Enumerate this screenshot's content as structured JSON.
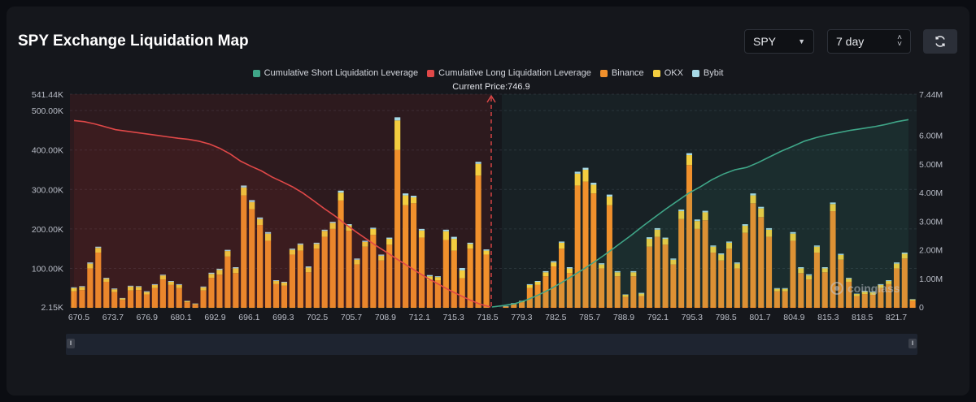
{
  "header": {
    "title": "SPY Exchange Liquidation Map",
    "symbol": "SPY",
    "period": "7 day",
    "refresh_icon": "refresh-icon"
  },
  "legend": [
    {
      "label": "Cumulative Short Liquidation Leverage",
      "color": "#3fa688"
    },
    {
      "label": "Cumulative Long Liquidation Leverage",
      "color": "#e04848"
    },
    {
      "label": "Binance",
      "color": "#f0902c"
    },
    {
      "label": "OKX",
      "color": "#f3cd3f"
    },
    {
      "label": "Bybit",
      "color": "#a6d9e6"
    }
  ],
  "watermark": "coinglass",
  "chart_data": {
    "type": "bar",
    "current_price_label": "Current Price:746.9",
    "current_price": 746.9,
    "x_tick_labels": [
      "670.5",
      "673.7",
      "676.9",
      "680.1",
      "692.9",
      "696.1",
      "699.3",
      "702.5",
      "705.7",
      "708.9",
      "712.1",
      "715.3",
      "718.5",
      "779.3",
      "782.5",
      "785.7",
      "788.9",
      "792.1",
      "795.3",
      "798.5",
      "801.7",
      "804.9",
      "815.3",
      "818.5",
      "821.7"
    ],
    "y_left": {
      "ticks": [
        "2.15K",
        "100.00K",
        "200.00K",
        "300.00K",
        "400.00K",
        "500.00K",
        "541.44K"
      ],
      "range": [
        2150,
        541440
      ]
    },
    "y_right": {
      "ticks": [
        "0",
        "1.00M",
        "2.00M",
        "3.00M",
        "4.00M",
        "5.00M",
        "6.00M",
        "7.44M"
      ],
      "range": [
        0,
        7440000
      ]
    },
    "long_side_bars": [
      [
        42000,
        8000,
        2000
      ],
      [
        45000,
        8000,
        2000
      ],
      [
        100000,
        12000,
        3000
      ],
      [
        140000,
        12000,
        3000
      ],
      [
        66000,
        8000,
        2000
      ],
      [
        40000,
        7000,
        2000
      ],
      [
        20000,
        4000,
        1000
      ],
      [
        44000,
        10000,
        2000
      ],
      [
        45000,
        8000,
        2000
      ],
      [
        34000,
        6000,
        2000
      ],
      [
        50000,
        8000,
        2000
      ],
      [
        72000,
        10000,
        2000
      ],
      [
        58000,
        8000,
        2000
      ],
      [
        50000,
        8000,
        2000
      ],
      [
        14000,
        3000,
        1000
      ],
      [
        8000,
        2000,
        1000
      ],
      [
        44000,
        8000,
        2000
      ],
      [
        76000,
        10000,
        3000
      ],
      [
        84000,
        12000,
        3000
      ],
      [
        130000,
        14000,
        3000
      ],
      [
        88000,
        12000,
        3000
      ],
      [
        285000,
        20000,
        5000
      ],
      [
        250000,
        18000,
        5000
      ],
      [
        210000,
        15000,
        4000
      ],
      [
        170000,
        18000,
        4000
      ],
      [
        60000,
        8000,
        2000
      ],
      [
        56000,
        8000,
        2000
      ],
      [
        135000,
        12000,
        3000
      ],
      [
        145000,
        15000,
        3000
      ],
      [
        90000,
        12000,
        3000
      ],
      [
        150000,
        12000,
        3000
      ],
      [
        180000,
        15000,
        3000
      ],
      [
        200000,
        15000,
        3000
      ],
      [
        272000,
        20000,
        5000
      ],
      [
        195000,
        14000,
        3000
      ],
      [
        110000,
        12000,
        3000
      ],
      [
        155000,
        12000,
        3000
      ],
      [
        185000,
        15000,
        3000
      ],
      [
        120000,
        12000,
        3000
      ],
      [
        160000,
        15000,
        3000
      ],
      [
        400000,
        75000,
        8000
      ],
      [
        260000,
        25000,
        5000
      ],
      [
        265000,
        15000,
        4000
      ],
      [
        178000,
        18000,
        4000
      ],
      [
        70000,
        10000,
        3000
      ],
      [
        70000,
        8000,
        2000
      ],
      [
        172000,
        22000,
        4000
      ],
      [
        145000,
        30000,
        5000
      ],
      [
        75000,
        20000,
        6000
      ],
      [
        150000,
        12000,
        3000
      ],
      [
        335000,
        30000,
        5000
      ],
      [
        135000,
        10000,
        3000
      ]
    ],
    "short_side_bars": [
      [
        3000,
        1000,
        500
      ],
      [
        9000,
        2000,
        1000
      ],
      [
        14000,
        3000,
        1000
      ],
      [
        50000,
        8000,
        2000
      ],
      [
        58000,
        8000,
        2000
      ],
      [
        80000,
        10000,
        3000
      ],
      [
        105000,
        10000,
        3000
      ],
      [
        150000,
        15000,
        3000
      ],
      [
        88000,
        12000,
        3000
      ],
      [
        310000,
        30000,
        5000
      ],
      [
        320000,
        30000,
        5000
      ],
      [
        290000,
        22000,
        5000
      ],
      [
        100000,
        10000,
        3000
      ],
      [
        260000,
        22000,
        5000
      ],
      [
        80000,
        10000,
        3000
      ],
      [
        28000,
        5000,
        1000
      ],
      [
        80000,
        10000,
        3000
      ],
      [
        30000,
        6000,
        2000
      ],
      [
        155000,
        20000,
        4000
      ],
      [
        180000,
        18000,
        4000
      ],
      [
        160000,
        15000,
        3000
      ],
      [
        110000,
        12000,
        3000
      ],
      [
        225000,
        20000,
        4000
      ],
      [
        362000,
        25000,
        5000
      ],
      [
        200000,
        20000,
        4000
      ],
      [
        222000,
        20000,
        4000
      ],
      [
        140000,
        15000,
        3000
      ],
      [
        120000,
        15000,
        3000
      ],
      [
        150000,
        15000,
        3000
      ],
      [
        100000,
        12000,
        3000
      ],
      [
        190000,
        18000,
        4000
      ],
      [
        265000,
        20000,
        5000
      ],
      [
        230000,
        22000,
        4000
      ],
      [
        180000,
        18000,
        4000
      ],
      [
        42000,
        6000,
        2000
      ],
      [
        42000,
        6000,
        2000
      ],
      [
        170000,
        18000,
        4000
      ],
      [
        88000,
        12000,
        3000
      ],
      [
        72000,
        10000,
        3000
      ],
      [
        140000,
        15000,
        3000
      ],
      [
        90000,
        10000,
        3000
      ],
      [
        245000,
        18000,
        4000
      ],
      [
        122000,
        12000,
        3000
      ],
      [
        66000,
        8000,
        2000
      ],
      [
        30000,
        5000,
        1000
      ],
      [
        35000,
        6000,
        2000
      ],
      [
        33000,
        6000,
        2000
      ],
      [
        50000,
        8000,
        2000
      ],
      [
        60000,
        8000,
        2000
      ],
      [
        100000,
        12000,
        3000
      ],
      [
        125000,
        12000,
        3000
      ],
      [
        18000,
        3000,
        1000
      ]
    ],
    "cumulative_long": [
      6.52,
      6.48,
      6.4,
      6.3,
      6.2,
      6.15,
      6.1,
      6.05,
      6.0,
      5.95,
      5.9,
      5.86,
      5.8,
      5.7,
      5.55,
      5.35,
      5.1,
      4.92,
      4.76,
      4.55,
      4.38,
      4.2,
      3.98,
      3.72,
      3.45,
      3.2,
      2.92,
      2.65,
      2.4,
      2.15,
      1.92,
      1.68,
      1.45,
      1.22,
      1.0,
      0.8,
      0.6,
      0.42,
      0.25,
      0.1,
      0.0
    ],
    "cumulative_short": [
      0.0,
      0.05,
      0.12,
      0.25,
      0.42,
      0.62,
      0.85,
      1.1,
      1.35,
      1.62,
      1.9,
      2.2,
      2.5,
      2.82,
      3.12,
      3.42,
      3.7,
      3.98,
      4.2,
      4.45,
      4.65,
      4.8,
      4.88,
      5.05,
      5.25,
      5.45,
      5.62,
      5.8,
      5.92,
      6.02,
      6.1,
      6.18,
      6.24,
      6.3,
      6.38,
      6.48,
      6.55
    ],
    "grid": true
  }
}
